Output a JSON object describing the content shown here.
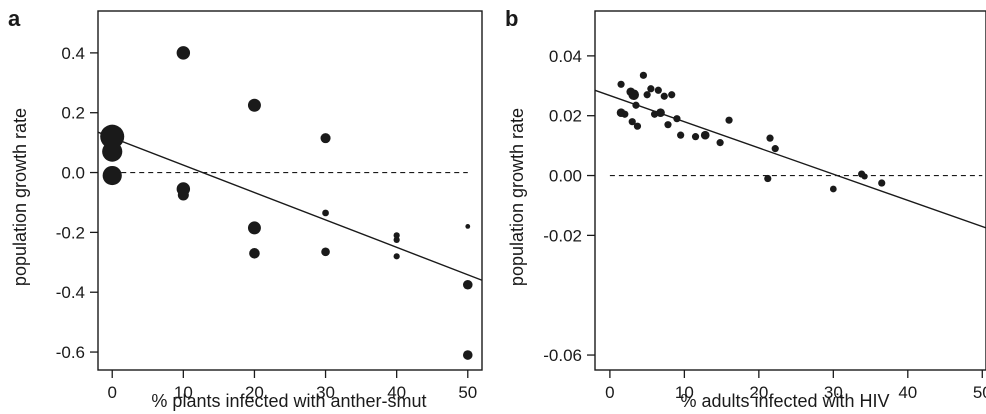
{
  "chart_data": [
    {
      "type": "scatter",
      "panel_label": "a",
      "title": "",
      "xlabel": "% plants infected with anther-smut",
      "ylabel": "population growth rate",
      "xlim": [
        -2,
        52
      ],
      "ylim": [
        -0.66,
        0.54
      ],
      "xticks": [
        0,
        10,
        20,
        30,
        40,
        50
      ],
      "yticks": [
        -0.6,
        -0.4,
        -0.2,
        0.0,
        0.2,
        0.4
      ],
      "ytick_labels": [
        "-0.6",
        "-0.4",
        "-0.2",
        "0.0",
        "0.2",
        "0.4"
      ],
      "xtick_labels": [
        "0",
        "10",
        "20",
        "30",
        "40",
        "50"
      ],
      "reference_line_y": 0,
      "fit_line": {
        "x": [
          -2,
          52
        ],
        "y": [
          0.135,
          -0.36
        ]
      },
      "points": [
        {
          "x": 0,
          "y": 0.12,
          "size": 5
        },
        {
          "x": 0,
          "y": 0.07,
          "size": 4.2
        },
        {
          "x": 0,
          "y": -0.01,
          "size": 4
        },
        {
          "x": 10,
          "y": 0.4,
          "size": 2.8
        },
        {
          "x": 10,
          "y": -0.055,
          "size": 2.8
        },
        {
          "x": 10,
          "y": -0.075,
          "size": 2.3
        },
        {
          "x": 20,
          "y": 0.225,
          "size": 2.7
        },
        {
          "x": 20,
          "y": -0.185,
          "size": 2.7
        },
        {
          "x": 20,
          "y": -0.27,
          "size": 2.2
        },
        {
          "x": 30,
          "y": 0.115,
          "size": 2.1
        },
        {
          "x": 30,
          "y": -0.135,
          "size": 1.4
        },
        {
          "x": 30,
          "y": -0.265,
          "size": 1.8
        },
        {
          "x": 40,
          "y": -0.21,
          "size": 1.3
        },
        {
          "x": 40,
          "y": -0.225,
          "size": 1.3
        },
        {
          "x": 40,
          "y": -0.28,
          "size": 1.3
        },
        {
          "x": 50,
          "y": -0.18,
          "size": 1
        },
        {
          "x": 50,
          "y": -0.375,
          "size": 2
        },
        {
          "x": 50,
          "y": -0.61,
          "size": 2
        }
      ]
    },
    {
      "type": "scatter",
      "panel_label": "b",
      "title": "",
      "xlabel": "% adults infected with HIV",
      "ylabel": "population growth rate",
      "xlim": [
        -2,
        50.5
      ],
      "ylim": [
        -0.065,
        0.055
      ],
      "xticks": [
        0,
        10,
        20,
        30,
        40,
        50
      ],
      "xtick_labels": [
        "0",
        "10",
        "20",
        "30",
        "40",
        "50"
      ],
      "yticks": [
        -0.06,
        -0.02,
        0.0,
        0.02,
        0.04
      ],
      "ytick_labels": [
        "-0.06",
        "-0.02",
        "0.00",
        "0.02",
        "0.04"
      ],
      "reference_line_y": 0,
      "fit_line": {
        "x": [
          -2,
          50.5
        ],
        "y": [
          0.0285,
          -0.0175
        ]
      },
      "points": [
        {
          "x": 1.5,
          "y": 0.0305,
          "size": 1.5
        },
        {
          "x": 1.5,
          "y": 0.021,
          "size": 1.8
        },
        {
          "x": 2,
          "y": 0.0205,
          "size": 1.5
        },
        {
          "x": 2.8,
          "y": 0.028,
          "size": 1.8
        },
        {
          "x": 3.2,
          "y": 0.027,
          "size": 2.2
        },
        {
          "x": 3,
          "y": 0.018,
          "size": 1.5
        },
        {
          "x": 3.5,
          "y": 0.0235,
          "size": 1.5
        },
        {
          "x": 3.7,
          "y": 0.0165,
          "size": 1.5
        },
        {
          "x": 4.5,
          "y": 0.0335,
          "size": 1.5
        },
        {
          "x": 5,
          "y": 0.027,
          "size": 1.5
        },
        {
          "x": 5.5,
          "y": 0.029,
          "size": 1.5
        },
        {
          "x": 6,
          "y": 0.0205,
          "size": 1.5
        },
        {
          "x": 6.5,
          "y": 0.0285,
          "size": 1.5
        },
        {
          "x": 6.8,
          "y": 0.021,
          "size": 1.8
        },
        {
          "x": 7.3,
          "y": 0.0265,
          "size": 1.5
        },
        {
          "x": 7.8,
          "y": 0.017,
          "size": 1.5
        },
        {
          "x": 8.3,
          "y": 0.027,
          "size": 1.5
        },
        {
          "x": 9,
          "y": 0.019,
          "size": 1.5
        },
        {
          "x": 9.5,
          "y": 0.0135,
          "size": 1.5
        },
        {
          "x": 11.5,
          "y": 0.013,
          "size": 1.5
        },
        {
          "x": 12.8,
          "y": 0.0135,
          "size": 1.8
        },
        {
          "x": 14.8,
          "y": 0.011,
          "size": 1.5
        },
        {
          "x": 16,
          "y": 0.0185,
          "size": 1.5
        },
        {
          "x": 21.5,
          "y": 0.0125,
          "size": 1.5
        },
        {
          "x": 22.2,
          "y": 0.009,
          "size": 1.5
        },
        {
          "x": 21.2,
          "y": -0.001,
          "size": 1.5
        },
        {
          "x": 30,
          "y": -0.0045,
          "size": 1.4
        },
        {
          "x": 33.8,
          "y": 0.0005,
          "size": 1.5
        },
        {
          "x": 34.2,
          "y": -0.0003,
          "size": 1.3
        },
        {
          "x": 36.5,
          "y": -0.0025,
          "size": 1.5
        }
      ]
    }
  ]
}
